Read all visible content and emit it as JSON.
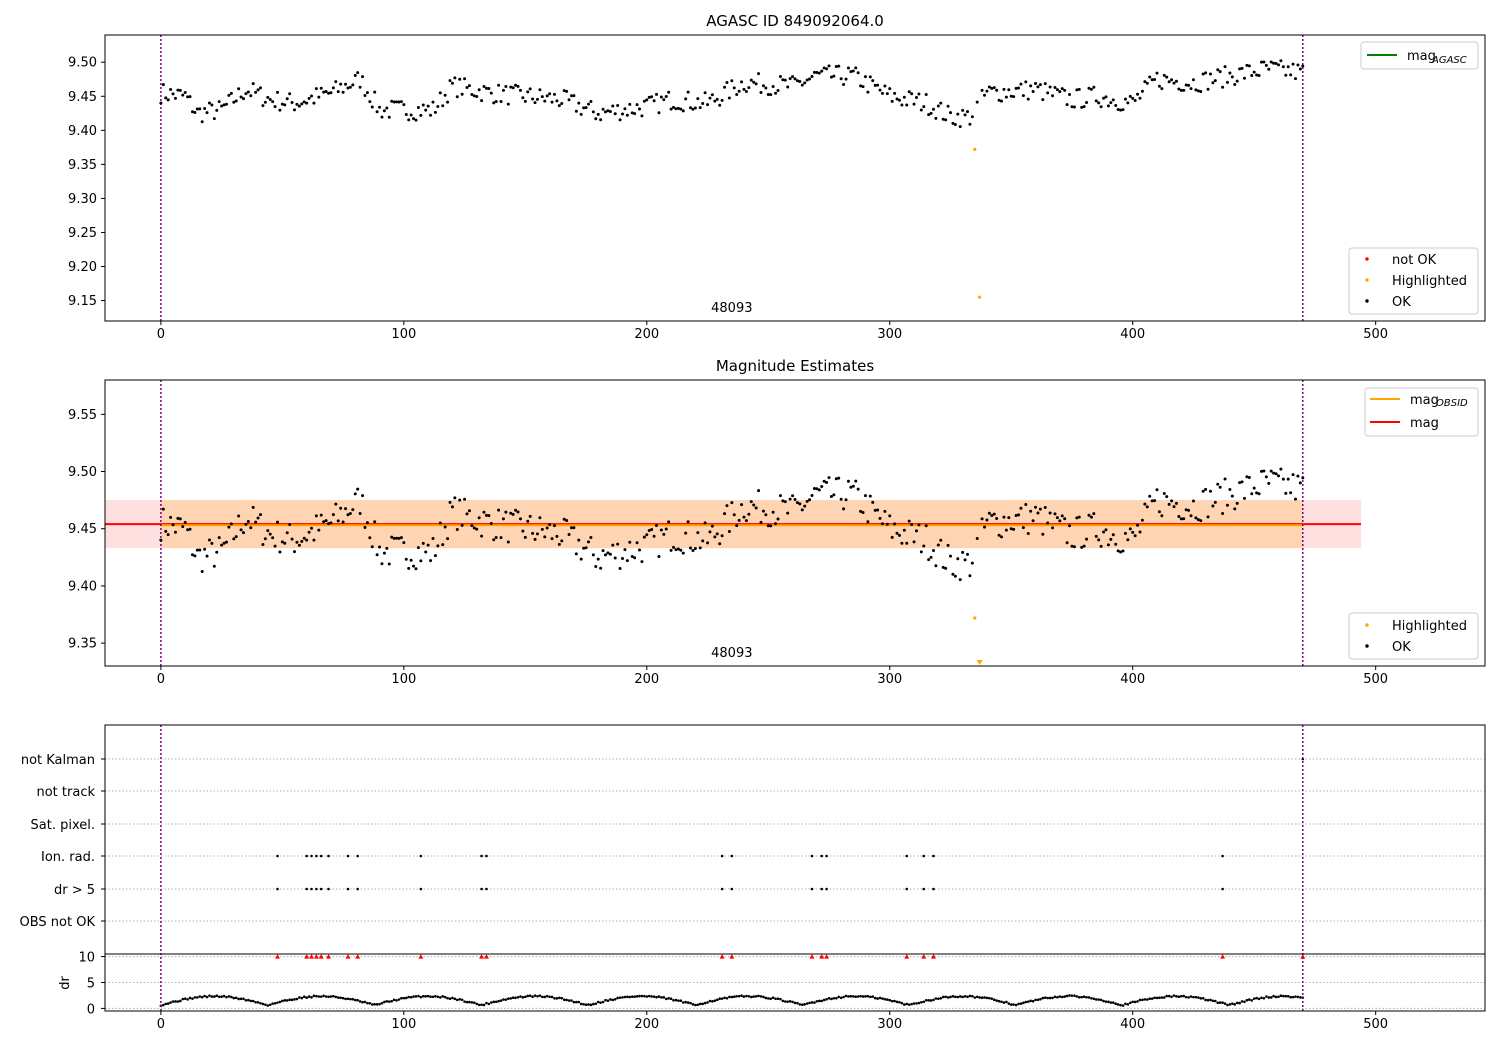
{
  "chart_data": [
    {
      "type": "scatter",
      "title": "AGASC ID 849092064.0",
      "xlim": [
        -23,
        545
      ],
      "ylim": [
        9.12,
        9.54
      ],
      "xticks": [
        0,
        100,
        200,
        300,
        400,
        500
      ],
      "yticks": [
        "9.15",
        "9.20",
        "9.25",
        "9.30",
        "9.35",
        "9.40",
        "9.45",
        "9.50"
      ],
      "ytick_values": [
        9.15,
        9.2,
        9.25,
        9.3,
        9.35,
        9.4,
        9.45,
        9.5
      ],
      "obsid_label": "48093",
      "obsid_label_x": 235,
      "obsid_boundaries": [
        0,
        470
      ],
      "legend_top": [
        {
          "label": "mag",
          "sub": "AGASC",
          "color": "#008000"
        }
      ],
      "legend_bottom": [
        {
          "label": "not OK",
          "color": "#ff0000"
        },
        {
          "label": "Highlighted",
          "color": "#ffa500"
        },
        {
          "label": "OK",
          "color": "#000000"
        }
      ],
      "series": [
        {
          "name": "Highlighted",
          "color": "#ffa500",
          "points": [
            [
              335,
              9.372
            ],
            [
              337,
              9.155
            ]
          ]
        }
      ]
    },
    {
      "type": "scatter",
      "title": "Magnitude Estimates",
      "xlim": [
        -23,
        545
      ],
      "ylim": [
        9.33,
        9.58
      ],
      "xticks": [
        0,
        100,
        200,
        300,
        400,
        500
      ],
      "yticks": [
        "9.35",
        "9.40",
        "9.45",
        "9.50",
        "9.55"
      ],
      "ytick_values": [
        9.35,
        9.4,
        9.45,
        9.5,
        9.55
      ],
      "obsid_label": "48093",
      "obsid_label_x": 235,
      "obsid_boundaries": [
        0,
        470
      ],
      "mag_line": 9.454,
      "mag_band": [
        9.433,
        9.475
      ],
      "mag_band_x": [
        -23,
        494
      ],
      "mag_obsid_line": 9.453,
      "mag_obsid_band": [
        9.433,
        9.475
      ],
      "mag_obsid_band_x": [
        0,
        470
      ],
      "legend_top": [
        {
          "label": "mag",
          "sub": "OBSID",
          "color": "#ffa500"
        },
        {
          "label": "mag",
          "sub": "",
          "color": "#ff0000"
        }
      ],
      "legend_bottom": [
        {
          "label": "Highlighted",
          "color": "#ffa500"
        },
        {
          "label": "OK",
          "color": "#000000"
        }
      ],
      "series": [
        {
          "name": "Highlighted",
          "color": "#ffa500",
          "points": [
            [
              335,
              9.372
            ]
          ],
          "offscale_x": [
            337
          ]
        }
      ]
    },
    {
      "type": "scatter",
      "title": "",
      "xlim": [
        -23,
        545
      ],
      "xticks": [
        0,
        100,
        200,
        300,
        400,
        500
      ],
      "flag_rows": [
        "not Kalman",
        "not track",
        "Sat. pixel.",
        "Ion. rad.",
        "dr > 5",
        "OBS not OK"
      ],
      "flag_points": {
        "Ion. rad.": [
          48,
          60,
          62,
          64,
          66,
          69,
          77,
          81,
          107,
          132,
          134,
          231,
          235,
          268,
          272,
          274,
          307,
          314,
          318,
          437
        ],
        "dr > 5": [
          48,
          60,
          62,
          64,
          66,
          69,
          77,
          81,
          107,
          132,
          134,
          231,
          235,
          268,
          272,
          274,
          307,
          314,
          318,
          437
        ],
        "not Kalman": [
          470
        ]
      },
      "dr_ylabel": "dr",
      "dr_yticks": [
        "0",
        "5",
        "10"
      ],
      "dr_ytick_values": [
        0,
        5,
        10
      ],
      "dr_ylim": [
        -0.5,
        10.5
      ],
      "dr_high_points": [
        48,
        60,
        62,
        64,
        66,
        69,
        77,
        81,
        107,
        132,
        134,
        231,
        235,
        268,
        272,
        274,
        307,
        314,
        318,
        437,
        470
      ],
      "dr_high_value": 10,
      "obsid_boundaries": [
        0,
        470
      ]
    }
  ]
}
